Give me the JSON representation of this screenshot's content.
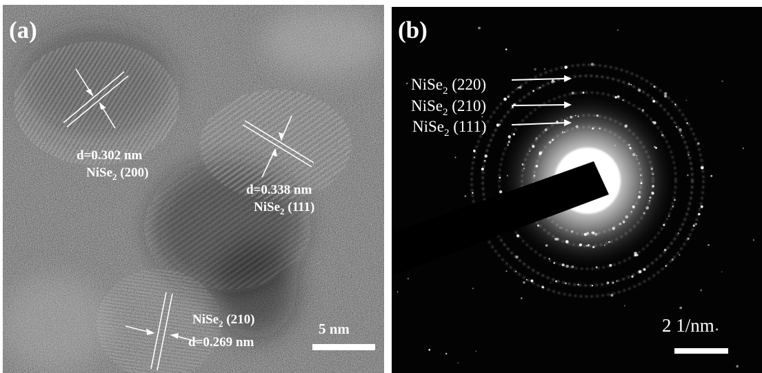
{
  "panels": [
    {
      "label": "(a)",
      "kind": "hrtem-micrograph",
      "annotations": [
        {
          "d": "d=0.302 nm",
          "phase": "NiSe",
          "subscript": "2",
          "plane": " (200)"
        },
        {
          "d": "d=0.338 nm",
          "phase": "NiSe",
          "subscript": "2",
          "plane": " (111)"
        },
        {
          "d": "d=0.269 nm",
          "phase": "NiSe",
          "subscript": "2",
          "plane": " (210)"
        }
      ],
      "scale_bar": {
        "text": "5 nm"
      }
    },
    {
      "label": "(b)",
      "kind": "saed-pattern",
      "ring_labels": [
        {
          "phase": "NiSe",
          "subscript": "2",
          "plane": " (220)"
        },
        {
          "phase": "NiSe",
          "subscript": "2",
          "plane": " (210)"
        },
        {
          "phase": "NiSe",
          "subscript": "2",
          "plane": " (111)"
        }
      ],
      "scale_bar": {
        "text": "2 1/nm"
      }
    }
  ],
  "colors": {
    "background": "#ffffff",
    "annotation": "#ffffff",
    "saed_background": "#030303",
    "beam_stop": "#000000",
    "tem_mid": "#6a6a6a"
  }
}
